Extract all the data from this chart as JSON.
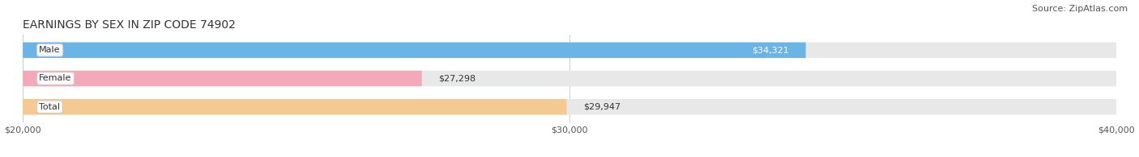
{
  "title": "EARNINGS BY SEX IN ZIP CODE 74902",
  "source": "Source: ZipAtlas.com",
  "categories": [
    "Male",
    "Female",
    "Total"
  ],
  "values": [
    34321,
    27298,
    29947
  ],
  "bar_colors": [
    "#6ab4e8",
    "#f4a8b8",
    "#f5c990"
  ],
  "bar_bg_color": "#e8e8e8",
  "xlim_min": 20000,
  "xlim_max": 40000,
  "xticks": [
    20000,
    30000,
    40000
  ],
  "xtick_labels": [
    "$20,000",
    "$30,000",
    "$40,000"
  ],
  "value_labels": [
    "$34,321",
    "$27,298",
    "$29,947"
  ],
  "title_fontsize": 10,
  "source_fontsize": 8,
  "tick_fontsize": 8,
  "bar_label_fontsize": 8,
  "category_fontsize": 8,
  "bar_height": 0.55,
  "background_color": "#ffffff"
}
